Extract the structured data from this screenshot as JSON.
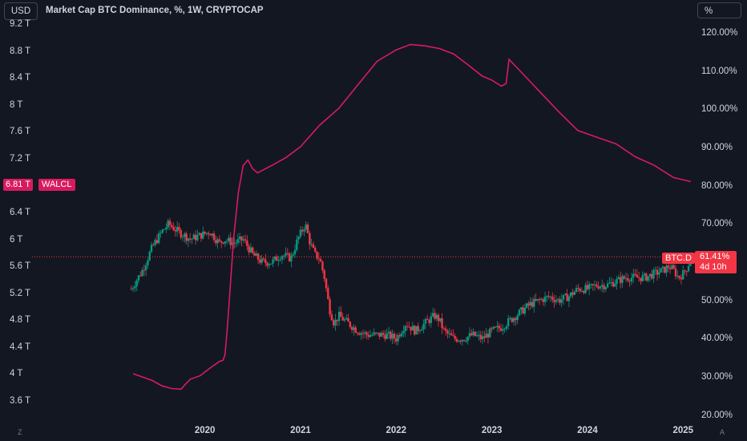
{
  "header": {
    "currency_button": "USD",
    "title": "Market Cap BTC Dominance, %, 1W, CRYPTOCAP",
    "scale_button": "%"
  },
  "badges": {
    "walcl_value": "6.81 T",
    "walcl_name": "WALCL",
    "btcd_name": "BTC.D",
    "btcd_value": "61.41%",
    "btcd_countdown": "4d 10h"
  },
  "corner": {
    "left": "Z",
    "right": "A"
  },
  "colors": {
    "background": "#131722",
    "walcl_line": "#d81b60",
    "candle_up": "#089981",
    "candle_down": "#f23645",
    "text": "#d1d4dc"
  },
  "chart_data": [
    {
      "type": "line",
      "series_name": "WALCL",
      "axis": "left",
      "y_tick_labels": [
        "9.2 T",
        "8.8 T",
        "8.4 T",
        "8 T",
        "7.6 T",
        "7.2 T",
        "6.4 T",
        "6 T",
        "5.6 T",
        "5.2 T",
        "4.8 T",
        "4.4 T",
        "4 T",
        "3.6 T"
      ],
      "y_ticks": [
        9.2,
        8.8,
        8.4,
        8.0,
        7.6,
        7.2,
        6.4,
        6.0,
        5.6,
        5.2,
        4.8,
        4.4,
        4.0,
        3.6
      ],
      "ylim": [
        3.5,
        9.3
      ],
      "x": [
        2019.25,
        2019.35,
        2019.45,
        2019.55,
        2019.65,
        2019.75,
        2019.8,
        2019.85,
        2019.95,
        2020.05,
        2020.15,
        2020.19,
        2020.21,
        2020.23,
        2020.26,
        2020.3,
        2020.35,
        2020.4,
        2020.45,
        2020.5,
        2020.55,
        2020.7,
        2020.85,
        2021.0,
        2021.2,
        2021.4,
        2021.6,
        2021.8,
        2022.0,
        2022.15,
        2022.3,
        2022.45,
        2022.6,
        2022.75,
        2022.9,
        2023.0,
        2023.1,
        2023.15,
        2023.18,
        2023.3,
        2023.5,
        2023.7,
        2023.9,
        2024.1,
        2024.3,
        2024.5,
        2024.7,
        2024.9,
        2025.08
      ],
      "y": [
        4.0,
        3.95,
        3.9,
        3.82,
        3.78,
        3.77,
        3.85,
        3.92,
        3.97,
        4.08,
        4.18,
        4.2,
        4.28,
        4.6,
        5.2,
        6.0,
        6.7,
        7.1,
        7.18,
        7.05,
        6.99,
        7.1,
        7.22,
        7.38,
        7.7,
        7.95,
        8.3,
        8.65,
        8.82,
        8.9,
        8.88,
        8.84,
        8.76,
        8.6,
        8.43,
        8.37,
        8.28,
        8.32,
        8.68,
        8.5,
        8.2,
        7.9,
        7.62,
        7.52,
        7.42,
        7.23,
        7.1,
        6.92,
        6.86
      ]
    },
    {
      "type": "candlestick",
      "series_name": "BTC.D",
      "axis": "right",
      "y_tick_labels": [
        "120.00%",
        "110.00%",
        "100.00%",
        "90.00%",
        "80.00%",
        "70.00%",
        "60.00%",
        "50.00%",
        "40.00%",
        "30.00%",
        "20.00%"
      ],
      "y_ticks": [
        120,
        110,
        100,
        90,
        80,
        70,
        60,
        50,
        40,
        30,
        20
      ],
      "ylim": [
        17,
        124
      ],
      "x_tick_labels": [
        "2020",
        "2021",
        "2022",
        "2023",
        "2024",
        "2025"
      ],
      "x_ticks": [
        2020,
        2021,
        2022,
        2023,
        2024,
        2025
      ],
      "xlim": [
        2018.0,
        2025.4
      ],
      "last_value": 61.41,
      "path_x": [
        2019.23,
        2019.35,
        2019.45,
        2019.55,
        2019.62,
        2019.72,
        2019.85,
        2019.95,
        2020.05,
        2020.15,
        2020.2,
        2020.3,
        2020.4,
        2020.5,
        2020.6,
        2020.7,
        2020.8,
        2020.9,
        2020.97,
        2021.05,
        2021.1,
        2021.15,
        2021.2,
        2021.25,
        2021.3,
        2021.35,
        2021.4,
        2021.5,
        2021.6,
        2021.7,
        2021.8,
        2021.9,
        2022.0,
        2022.1,
        2022.2,
        2022.3,
        2022.4,
        2022.45,
        2022.5,
        2022.6,
        2022.7,
        2022.8,
        2022.9,
        2023.0,
        2023.1,
        2023.2,
        2023.3,
        2023.4,
        2023.5,
        2023.6,
        2023.7,
        2023.8,
        2023.9,
        2024.0,
        2024.1,
        2024.2,
        2024.3,
        2024.4,
        2024.5,
        2024.6,
        2024.7,
        2024.8,
        2024.85,
        2024.9,
        2024.95,
        2025.0,
        2025.05,
        2025.08
      ],
      "path_y": [
        53,
        58,
        64,
        68,
        70,
        68,
        66,
        67,
        68,
        65,
        66,
        65,
        66,
        62,
        60,
        60,
        62,
        61,
        66,
        70,
        65,
        62,
        61,
        56,
        48,
        44,
        46,
        44,
        42,
        41,
        41,
        41,
        40,
        44,
        42,
        44,
        46,
        45,
        42,
        40,
        40,
        41,
        40,
        42,
        43,
        45,
        47,
        49,
        50,
        51,
        50,
        51,
        53,
        53,
        54,
        54,
        55,
        56,
        56,
        56,
        57,
        58,
        59,
        58,
        56,
        57,
        59,
        61.4
      ]
    }
  ]
}
